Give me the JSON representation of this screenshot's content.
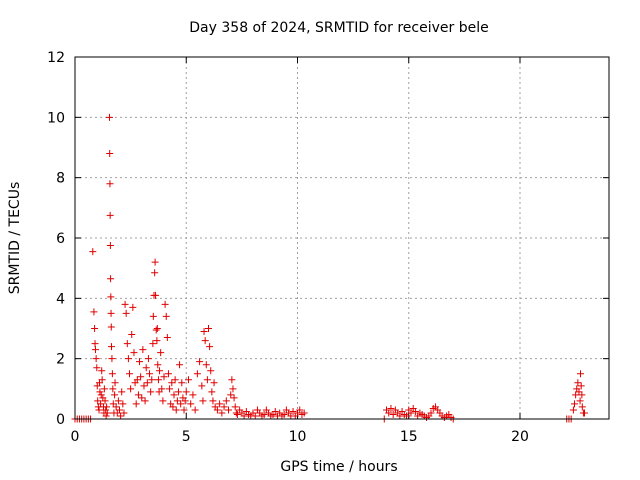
{
  "chart_data": {
    "type": "scatter",
    "title": "Day 358 of 2024, SRMTID for receiver bele",
    "xlabel": "GPS time / hours",
    "ylabel": "SRMTID / TECUs",
    "xlim": [
      0,
      24
    ],
    "ylim": [
      0,
      12
    ],
    "xticks": [
      0,
      5,
      10,
      15,
      20
    ],
    "yticks": [
      0,
      2,
      4,
      6,
      8,
      10,
      12
    ],
    "grid": true,
    "marker": "+",
    "marker_color": "#e00000",
    "series": [
      {
        "name": "SRMTID",
        "x": [
          0.0,
          0.1,
          0.2,
          0.3,
          0.4,
          0.5,
          0.6,
          0.7,
          0.8,
          0.85,
          0.88,
          0.9,
          0.92,
          0.95,
          0.98,
          1.0,
          1.02,
          1.05,
          1.08,
          1.1,
          1.12,
          1.15,
          1.18,
          1.2,
          1.22,
          1.25,
          1.28,
          1.3,
          1.32,
          1.35,
          1.38,
          1.4,
          1.42,
          1.45,
          1.55,
          1.56,
          1.57,
          1.58,
          1.59,
          1.6,
          1.61,
          1.62,
          1.63,
          1.64,
          1.66,
          1.68,
          1.7,
          1.72,
          1.75,
          1.78,
          1.8,
          1.85,
          1.9,
          1.95,
          2.0,
          2.05,
          2.1,
          2.15,
          2.2,
          2.25,
          2.3,
          2.35,
          2.4,
          2.45,
          2.5,
          2.55,
          2.6,
          2.65,
          2.7,
          2.75,
          2.8,
          2.85,
          2.9,
          2.95,
          3.0,
          3.05,
          3.1,
          3.15,
          3.2,
          3.25,
          3.3,
          3.35,
          3.4,
          3.45,
          3.5,
          3.52,
          3.55,
          3.58,
          3.6,
          3.62,
          3.65,
          3.68,
          3.7,
          3.72,
          3.75,
          3.78,
          3.8,
          3.85,
          3.9,
          3.95,
          4.0,
          4.05,
          4.1,
          4.15,
          4.2,
          4.25,
          4.3,
          4.35,
          4.4,
          4.45,
          4.5,
          4.55,
          4.6,
          4.65,
          4.7,
          4.75,
          4.8,
          4.85,
          4.9,
          4.95,
          5.0,
          5.1,
          5.2,
          5.3,
          5.4,
          5.5,
          5.6,
          5.7,
          5.75,
          5.8,
          5.85,
          5.9,
          5.95,
          6.0,
          6.05,
          6.1,
          6.15,
          6.2,
          6.25,
          6.3,
          6.4,
          6.5,
          6.6,
          6.7,
          6.8,
          6.9,
          7.0,
          7.05,
          7.1,
          7.15,
          7.2,
          7.25,
          7.3,
          7.4,
          7.5,
          7.6,
          7.7,
          7.8,
          7.9,
          8.0,
          8.1,
          8.2,
          8.3,
          8.4,
          8.5,
          8.6,
          8.7,
          8.8,
          8.9,
          9.0,
          9.1,
          9.2,
          9.3,
          9.4,
          9.5,
          9.6,
          9.7,
          9.8,
          9.9,
          10.0,
          10.1,
          10.2,
          10.3,
          13.9,
          14.0,
          14.1,
          14.2,
          14.3,
          14.4,
          14.5,
          14.6,
          14.7,
          14.8,
          14.9,
          15.0,
          15.1,
          15.2,
          15.3,
          15.4,
          15.5,
          15.6,
          15.7,
          15.8,
          15.9,
          16.0,
          16.1,
          16.2,
          16.3,
          16.4,
          16.5,
          16.6,
          16.7,
          16.8,
          16.9,
          17.0,
          22.1,
          22.2,
          22.3,
          22.4,
          22.45,
          22.5,
          22.55,
          22.6,
          22.65,
          22.7,
          22.72,
          22.75,
          22.78,
          22.8,
          22.85,
          22.9
        ],
        "y": [
          0.0,
          0.0,
          0.0,
          0.0,
          0.0,
          0.0,
          0.0,
          0.0,
          5.55,
          3.55,
          3.0,
          2.5,
          2.3,
          2.0,
          1.7,
          1.1,
          0.6,
          0.4,
          0.3,
          1.2,
          0.9,
          0.5,
          0.8,
          1.6,
          1.3,
          0.7,
          0.4,
          0.2,
          1.0,
          0.6,
          0.3,
          0.1,
          0.4,
          0.2,
          10.0,
          8.8,
          7.8,
          6.75,
          5.75,
          4.65,
          4.05,
          3.5,
          3.05,
          2.4,
          2.0,
          1.5,
          1.0,
          0.5,
          0.2,
          0.8,
          1.2,
          0.4,
          0.2,
          0.6,
          0.3,
          0.1,
          0.9,
          0.5,
          0.2,
          3.8,
          3.5,
          2.5,
          2.0,
          1.5,
          1.0,
          2.8,
          3.7,
          2.2,
          1.2,
          0.5,
          1.3,
          0.8,
          1.9,
          1.4,
          0.7,
          2.3,
          1.1,
          0.6,
          1.7,
          1.2,
          2.0,
          1.5,
          0.9,
          1.3,
          2.5,
          3.4,
          4.1,
          4.85,
          5.2,
          4.1,
          2.95,
          2.6,
          3.0,
          1.8,
          1.3,
          0.9,
          1.6,
          2.2,
          1.0,
          0.6,
          1.4,
          3.8,
          3.4,
          2.7,
          1.5,
          1.0,
          0.5,
          1.2,
          0.4,
          0.8,
          1.3,
          0.3,
          0.6,
          0.9,
          1.8,
          0.5,
          1.2,
          0.7,
          0.3,
          0.6,
          0.9,
          1.3,
          0.5,
          0.8,
          0.3,
          1.5,
          1.9,
          1.1,
          0.6,
          2.9,
          2.6,
          1.8,
          1.3,
          3.0,
          2.4,
          1.6,
          0.9,
          0.6,
          1.2,
          0.4,
          0.3,
          0.5,
          0.2,
          0.4,
          0.6,
          0.3,
          0.8,
          1.3,
          1.0,
          0.7,
          0.4,
          0.2,
          0.15,
          0.3,
          0.2,
          0.1,
          0.25,
          0.15,
          0.1,
          0.2,
          0.1,
          0.3,
          0.2,
          0.1,
          0.15,
          0.3,
          0.2,
          0.1,
          0.15,
          0.25,
          0.1,
          0.2,
          0.1,
          0.15,
          0.3,
          0.2,
          0.1,
          0.25,
          0.1,
          0.2,
          0.3,
          0.15,
          0.2,
          0.0,
          0.3,
          0.2,
          0.35,
          0.15,
          0.3,
          0.2,
          0.1,
          0.25,
          0.15,
          0.1,
          0.3,
          0.2,
          0.35,
          0.25,
          0.1,
          0.2,
          0.15,
          0.1,
          0.05,
          0.1,
          0.2,
          0.35,
          0.4,
          0.3,
          0.2,
          0.1,
          0.05,
          0.1,
          0.15,
          0.05,
          0.0,
          0.0,
          0.0,
          0.0,
          0.3,
          0.5,
          0.8,
          1.0,
          1.2,
          0.9,
          0.6,
          1.5,
          1.1,
          0.8,
          0.4,
          0.2,
          0.2
        ]
      }
    ]
  }
}
